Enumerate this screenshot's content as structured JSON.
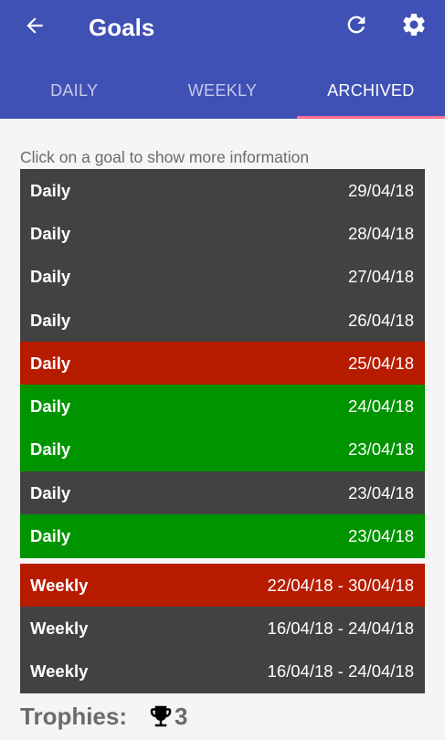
{
  "appbar": {
    "title": "Goals",
    "color": "#3f51b5",
    "icons": {
      "back": "arrow-left-icon",
      "refresh": "refresh-icon",
      "settings": "gear-icon"
    }
  },
  "tabs": [
    {
      "label": "DAILY",
      "active": false
    },
    {
      "label": "WEEKLY",
      "active": false
    },
    {
      "label": "ARCHIVED",
      "active": true
    }
  ],
  "hint": "Click on a goal to show more information",
  "daily_goals": [
    {
      "type": "Daily",
      "date": "29/04/18",
      "status": "neutral"
    },
    {
      "type": "Daily",
      "date": "28/04/18",
      "status": "neutral"
    },
    {
      "type": "Daily",
      "date": "27/04/18",
      "status": "neutral"
    },
    {
      "type": "Daily",
      "date": "26/04/18",
      "status": "neutral"
    },
    {
      "type": "Daily",
      "date": "25/04/18",
      "status": "failed"
    },
    {
      "type": "Daily",
      "date": "24/04/18",
      "status": "success"
    },
    {
      "type": "Daily",
      "date": "23/04/18",
      "status": "success"
    },
    {
      "type": "Daily",
      "date": "23/04/18",
      "status": "neutral"
    },
    {
      "type": "Daily",
      "date": "23/04/18",
      "status": "success"
    }
  ],
  "weekly_goals": [
    {
      "type": "Weekly",
      "date": "22/04/18 - 30/04/18",
      "status": "failed"
    },
    {
      "type": "Weekly",
      "date": "16/04/18 - 24/04/18",
      "status": "neutral"
    },
    {
      "type": "Weekly",
      "date": "16/04/18 - 24/04/18",
      "status": "neutral"
    }
  ],
  "status_colors": {
    "neutral": "#424242",
    "failed": "#b71c00",
    "success": "#009400"
  },
  "trophies": {
    "label": "Trophies:",
    "count": "3",
    "icon": "trophy-icon"
  }
}
